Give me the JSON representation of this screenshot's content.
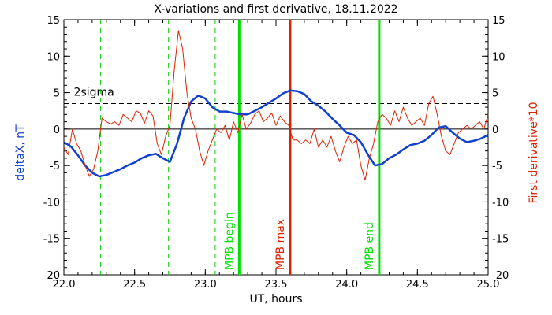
{
  "chart_data": {
    "type": "line",
    "title": "X-variations and first derivative, 18.11.2022",
    "xlabel": "UT, hours",
    "ylabel_left": "deltaX, nT",
    "ylabel_right": "First derivative*10",
    "xlim": [
      22.0,
      25.0
    ],
    "ylim": [
      -20,
      15
    ],
    "xticks": [
      "22.0",
      "22.5",
      "23.0",
      "23.5",
      "24.0",
      "24.5",
      "25.0"
    ],
    "yticks_left": [
      "15",
      "10",
      "5",
      "0",
      "-5",
      "-10",
      "-15",
      "-20"
    ],
    "yticks_right": [
      "15",
      "10",
      "5",
      "0",
      "-5",
      "-10",
      "-15",
      "-20"
    ],
    "threshold": {
      "label": "2sigma",
      "value": 3.5
    },
    "zero_line": 0,
    "vlines": [
      {
        "x": 22.26,
        "style": "dashed",
        "color": "#00cc00",
        "label": ""
      },
      {
        "x": 22.74,
        "style": "dashed",
        "color": "#00cc00",
        "label": ""
      },
      {
        "x": 23.07,
        "style": "dashed",
        "color": "#00cc00",
        "label": ""
      },
      {
        "x": 23.24,
        "style": "solid",
        "color": "#00dd00",
        "label": "MPB begin"
      },
      {
        "x": 23.6,
        "style": "solid",
        "color": "#dd2200",
        "label": "MPB max"
      },
      {
        "x": 24.23,
        "style": "solid",
        "color": "#00dd00",
        "label": "MPB end"
      },
      {
        "x": 24.83,
        "style": "dashed",
        "color": "#00cc00",
        "label": ""
      }
    ],
    "series": [
      {
        "color": "#1040d0",
        "axis": "left",
        "x": [
          22.0,
          22.05,
          22.1,
          22.15,
          22.2,
          22.25,
          22.3,
          22.35,
          22.4,
          22.45,
          22.5,
          22.55,
          22.6,
          22.65,
          22.7,
          22.75,
          22.8,
          22.85,
          22.9,
          22.95,
          23.0,
          23.05,
          23.1,
          23.15,
          23.2,
          23.25,
          23.3,
          23.35,
          23.4,
          23.45,
          23.5,
          23.55,
          23.6,
          23.65,
          23.7,
          23.75,
          23.8,
          23.85,
          23.9,
          23.95,
          24.0,
          24.05,
          24.1,
          24.15,
          24.2,
          24.25,
          24.3,
          24.35,
          24.4,
          24.45,
          24.5,
          24.55,
          24.6,
          24.65,
          24.7,
          24.75,
          24.8,
          24.85,
          24.9,
          24.95,
          25.0
        ],
        "y": [
          -1.8,
          -2.4,
          -3.6,
          -5.0,
          -6.0,
          -6.5,
          -6.3,
          -5.9,
          -5.5,
          -5.0,
          -4.6,
          -4.0,
          -3.6,
          -3.4,
          -4.0,
          -4.5,
          -2.0,
          1.5,
          3.8,
          4.6,
          4.2,
          3.0,
          2.4,
          2.4,
          2.2,
          2.0,
          2.0,
          2.5,
          3.0,
          3.6,
          4.2,
          4.9,
          5.3,
          5.2,
          4.8,
          3.8,
          3.2,
          2.4,
          1.4,
          0.5,
          -0.5,
          -0.8,
          -1.8,
          -3.5,
          -5.0,
          -4.8,
          -4.0,
          -3.5,
          -2.8,
          -2.2,
          -2.0,
          -1.6,
          -0.8,
          0.2,
          0.4,
          -0.5,
          -1.3,
          -1.8,
          -1.6,
          -1.3,
          -0.8
        ]
      },
      {
        "color": "#dd2200",
        "axis": "right",
        "x": [
          22.0,
          22.03,
          22.06,
          22.09,
          22.12,
          22.15,
          22.18,
          22.21,
          22.24,
          22.27,
          22.3,
          22.33,
          22.36,
          22.39,
          22.42,
          22.45,
          22.48,
          22.51,
          22.54,
          22.57,
          22.6,
          22.63,
          22.66,
          22.69,
          22.72,
          22.75,
          22.78,
          22.81,
          22.84,
          22.87,
          22.9,
          22.93,
          22.96,
          22.99,
          23.02,
          23.05,
          23.08,
          23.11,
          23.14,
          23.17,
          23.2,
          23.23,
          23.26,
          23.29,
          23.32,
          23.35,
          23.38,
          23.41,
          23.44,
          23.47,
          23.5,
          23.53,
          23.56,
          23.59,
          23.62,
          23.65,
          23.68,
          23.71,
          23.74,
          23.77,
          23.8,
          23.83,
          23.86,
          23.89,
          23.92,
          23.95,
          23.98,
          24.01,
          24.04,
          24.07,
          24.1,
          24.13,
          24.16,
          24.19,
          24.22,
          24.25,
          24.28,
          24.31,
          24.34,
          24.37,
          24.4,
          24.43,
          24.46,
          24.49,
          24.52,
          24.55,
          24.58,
          24.61,
          24.64,
          24.67,
          24.7,
          24.73,
          24.76,
          24.79,
          24.82,
          24.85,
          24.88,
          24.91,
          24.94,
          24.97,
          25.0
        ],
        "y": [
          -2.5,
          -3.5,
          0.0,
          -2.0,
          -3.0,
          -5.0,
          -6.5,
          -5.5,
          -3.0,
          1.5,
          1.0,
          0.7,
          1.0,
          0.5,
          2.0,
          1.5,
          1.0,
          2.5,
          2.2,
          0.8,
          2.5,
          1.8,
          -2.0,
          -3.5,
          -1.0,
          0.5,
          8.0,
          13.5,
          11.0,
          5.0,
          1.5,
          0.0,
          -3.0,
          -5.0,
          -3.0,
          -1.5,
          0.0,
          -0.5,
          0.5,
          -1.5,
          1.0,
          -0.5,
          2.0,
          0.0,
          0.8,
          2.0,
          2.5,
          1.0,
          1.5,
          2.2,
          0.5,
          1.8,
          1.0,
          0.5,
          -1.5,
          -1.5,
          -2.0,
          -1.5,
          -2.0,
          0.0,
          -2.5,
          -1.5,
          -2.5,
          -1.0,
          -3.0,
          -4.5,
          -2.5,
          -1.0,
          -2.0,
          -1.5,
          -5.0,
          -7.0,
          -4.0,
          -2.0,
          1.0,
          2.0,
          1.5,
          0.5,
          2.5,
          1.0,
          3.0,
          1.5,
          0.5,
          1.0,
          1.5,
          0.5,
          3.5,
          4.5,
          2.0,
          -1.0,
          -3.0,
          -3.5,
          -2.0,
          -0.5,
          0.0,
          0.5,
          0.0,
          0.5,
          1.0,
          0.0,
          2.0
        ]
      }
    ]
  }
}
